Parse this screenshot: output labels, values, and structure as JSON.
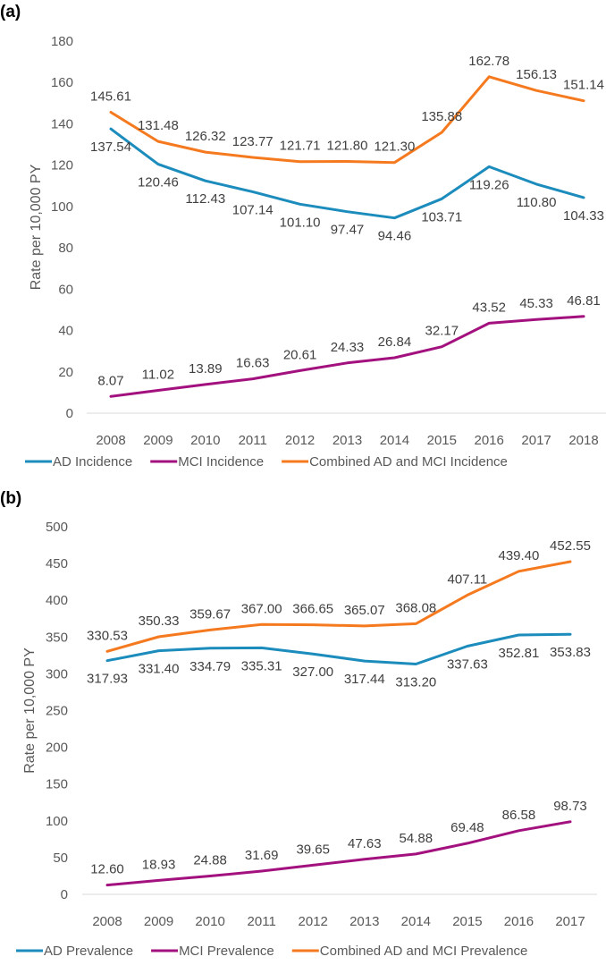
{
  "colors": {
    "ad": "#1c8cbc",
    "mci": "#a3117f",
    "combined": "#f57a1f"
  },
  "chart_data": [
    {
      "type": "line",
      "panel_label": "(a)",
      "title": "",
      "xlabel": "",
      "ylabel": "Rate per 10,000 PY",
      "ylim": [
        0,
        180
      ],
      "yticks": [
        "0",
        "20",
        "40",
        "60",
        "80",
        "100",
        "120",
        "140",
        "160",
        "180"
      ],
      "ytick_values": [
        0,
        20,
        40,
        60,
        80,
        100,
        120,
        140,
        160,
        180
      ],
      "grid": false,
      "legend_placement": "bottom",
      "categories": [
        "2008",
        "2009",
        "2010",
        "2011",
        "2012",
        "2013",
        "2014",
        "2015",
        "2016",
        "2017",
        "2018"
      ],
      "series": [
        {
          "name": "AD Incidence",
          "color_key": "ad",
          "label_pos": "below",
          "values": [
            137.54,
            120.46,
            112.43,
            107.14,
            101.1,
            97.47,
            94.46,
            103.71,
            119.26,
            110.8,
            104.33
          ],
          "labels": [
            "137.54",
            "120.46",
            "112.43",
            "107.14",
            "101.10",
            "97.47",
            "94.46",
            "103.71",
            "119.26",
            "110.80",
            "104.33"
          ]
        },
        {
          "name": "MCI Incidence",
          "color_key": "mci",
          "label_pos": "above",
          "values": [
            8.07,
            11.02,
            13.89,
            16.63,
            20.61,
            24.33,
            26.84,
            32.17,
            43.52,
            45.33,
            46.81
          ],
          "labels": [
            "8.07",
            "11.02",
            "13.89",
            "16.63",
            "20.61",
            "24.33",
            "26.84",
            "32.17",
            "43.52",
            "45.33",
            "46.81"
          ]
        },
        {
          "name": "Combined AD and MCI Incidence",
          "color_key": "combined",
          "label_pos": "above",
          "values": [
            145.61,
            131.48,
            126.32,
            123.77,
            121.71,
            121.8,
            121.3,
            135.88,
            162.78,
            156.13,
            151.14
          ],
          "labels": [
            "145.61",
            "131.48",
            "126.32",
            "123.77",
            "121.71",
            "121.80",
            "121.30",
            "135.88",
            "162.78",
            "156.13",
            "151.14"
          ]
        }
      ]
    },
    {
      "type": "line",
      "panel_label": "(b)",
      "title": "",
      "xlabel": "",
      "ylabel": "Rate per 10,000 PY",
      "ylim": [
        0,
        500
      ],
      "yticks": [
        "0",
        "50",
        "100",
        "150",
        "200",
        "250",
        "300",
        "350",
        "400",
        "450",
        "500"
      ],
      "ytick_values": [
        0,
        50,
        100,
        150,
        200,
        250,
        300,
        350,
        400,
        450,
        500
      ],
      "grid": false,
      "legend_placement": "bottom",
      "categories": [
        "2008",
        "2009",
        "2010",
        "2011",
        "2012",
        "2013",
        "2014",
        "2015",
        "2016",
        "2017"
      ],
      "series": [
        {
          "name": "AD Prevalence",
          "color_key": "ad",
          "label_pos": "below",
          "values": [
            317.93,
            331.4,
            334.79,
            335.31,
            327.0,
            317.44,
            313.2,
            337.63,
            352.81,
            353.83
          ],
          "labels": [
            "317.93",
            "331.40",
            "334.79",
            "335.31",
            "327.00",
            "317.44",
            "313.20",
            "337.63",
            "352.81",
            "353.83"
          ]
        },
        {
          "name": "MCI Prevalence",
          "color_key": "mci",
          "label_pos": "above",
          "values": [
            12.6,
            18.93,
            24.88,
            31.69,
            39.65,
            47.63,
            54.88,
            69.48,
            86.58,
            98.73
          ],
          "labels": [
            "12.60",
            "18.93",
            "24.88",
            "31.69",
            "39.65",
            "47.63",
            "54.88",
            "69.48",
            "86.58",
            "98.73"
          ]
        },
        {
          "name": "Combined AD and MCI Prevalence",
          "color_key": "combined",
          "label_pos": "above",
          "values": [
            330.53,
            350.33,
            359.67,
            367.0,
            366.65,
            365.07,
            368.08,
            407.11,
            439.4,
            452.55
          ],
          "labels": [
            "330.53",
            "350.33",
            "359.67",
            "367.00",
            "366.65",
            "365.07",
            "368.08",
            "407.11",
            "439.40",
            "452.55"
          ]
        }
      ]
    }
  ]
}
